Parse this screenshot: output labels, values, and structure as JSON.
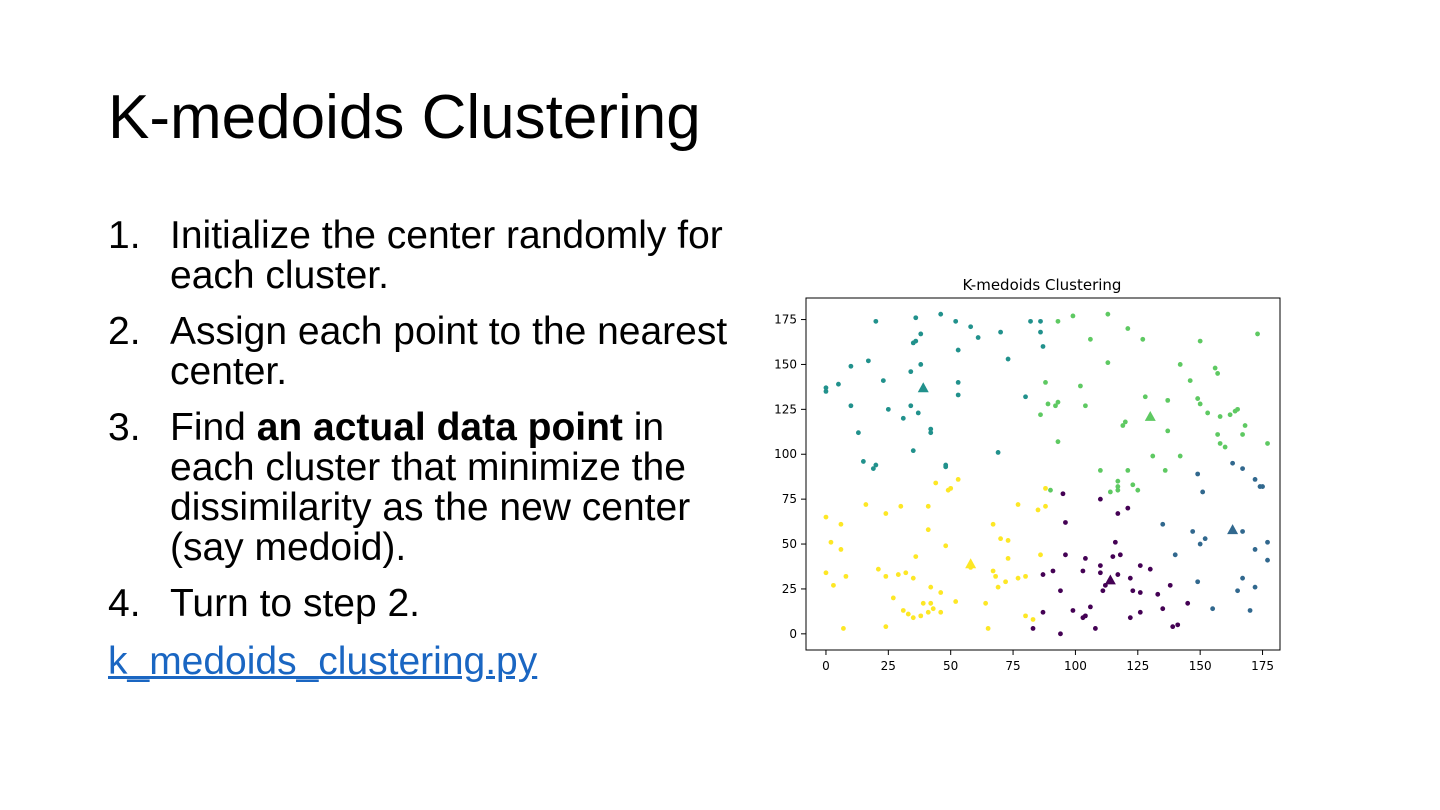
{
  "slide": {
    "title": "K-medoids Clustering",
    "steps": [
      {
        "number": "1.",
        "text": "Initialize the center randomly for each cluster."
      },
      {
        "number": "2.",
        "text": "Assign each point to the nearest center."
      },
      {
        "number": "3.",
        "before": "Find ",
        "bold": "an actual data point",
        "after": " in each cluster that minimize the dissimilarity as the new center (say medoid)."
      },
      {
        "number": "4.",
        "text": "Turn to step 2."
      }
    ],
    "link_text": "k_medoids_clustering.py",
    "link_color": "#1a66c2"
  },
  "chart_data": {
    "type": "scatter",
    "title": "K-medoids Clustering",
    "xlim": [
      -8,
      182
    ],
    "ylim": [
      -9,
      187
    ],
    "x_ticks": [
      0,
      25,
      50,
      75,
      100,
      125,
      150,
      175
    ],
    "y_ticks": [
      0,
      25,
      50,
      75,
      100,
      125,
      150,
      175
    ],
    "grid": false,
    "legend": "none",
    "series": [
      {
        "color": "#440154",
        "medoid": [
          114,
          30
        ],
        "points": [
          [
            95,
            78
          ],
          [
            110,
            75
          ],
          [
            117,
            67
          ],
          [
            121,
            70
          ],
          [
            96,
            62
          ],
          [
            116,
            51
          ],
          [
            115,
            43
          ],
          [
            118,
            44
          ],
          [
            104,
            42
          ],
          [
            110,
            38
          ],
          [
            126,
            38
          ],
          [
            130,
            36
          ],
          [
            122,
            31
          ],
          [
            117,
            33
          ],
          [
            110,
            34
          ],
          [
            112,
            27
          ],
          [
            103,
            35
          ],
          [
            96,
            44
          ],
          [
            91,
            35
          ],
          [
            87,
            33
          ],
          [
            94,
            24
          ],
          [
            111,
            24
          ],
          [
            123,
            24
          ],
          [
            126,
            23
          ],
          [
            133,
            22
          ],
          [
            138,
            27
          ],
          [
            135,
            14
          ],
          [
            126,
            12
          ],
          [
            145,
            17
          ],
          [
            106,
            15
          ],
          [
            99,
            13
          ],
          [
            104,
            10
          ],
          [
            108,
            3
          ],
          [
            103,
            9
          ],
          [
            87,
            12
          ],
          [
            83,
            3
          ],
          [
            94,
            0
          ],
          [
            139,
            4
          ],
          [
            141,
            5
          ],
          [
            122,
            9
          ]
        ]
      },
      {
        "color": "#31688e",
        "medoid": [
          163,
          58
        ],
        "points": [
          [
            163,
            95
          ],
          [
            167,
            92
          ],
          [
            172,
            86
          ],
          [
            174,
            82
          ],
          [
            175,
            82
          ],
          [
            149,
            89
          ],
          [
            151,
            79
          ],
          [
            135,
            61
          ],
          [
            147,
            57
          ],
          [
            150,
            50
          ],
          [
            152,
            53
          ],
          [
            140,
            44
          ],
          [
            149,
            29
          ],
          [
            155,
            14
          ],
          [
            167,
            57
          ],
          [
            172,
            47
          ],
          [
            177,
            51
          ],
          [
            177,
            41
          ],
          [
            167,
            31
          ],
          [
            172,
            26
          ],
          [
            170,
            13
          ],
          [
            165,
            24
          ]
        ]
      },
      {
        "color": "#21918c",
        "medoid": [
          39,
          137
        ],
        "points": [
          [
            20,
            174
          ],
          [
            36,
            176
          ],
          [
            46,
            178
          ],
          [
            52,
            174
          ],
          [
            58,
            171
          ],
          [
            38,
            167
          ],
          [
            36,
            163
          ],
          [
            35,
            162
          ],
          [
            53,
            158
          ],
          [
            61,
            165
          ],
          [
            70,
            168
          ],
          [
            73,
            153
          ],
          [
            82,
            174
          ],
          [
            86,
            174
          ],
          [
            86,
            168
          ],
          [
            87,
            160
          ],
          [
            38,
            150
          ],
          [
            23,
            141
          ],
          [
            34,
            146
          ],
          [
            10,
            149
          ],
          [
            17,
            152
          ],
          [
            5,
            139
          ],
          [
            0,
            137
          ],
          [
            0,
            135
          ],
          [
            10,
            127
          ],
          [
            25,
            125
          ],
          [
            31,
            120
          ],
          [
            37,
            123
          ],
          [
            34,
            127
          ],
          [
            53,
            140
          ],
          [
            53,
            133
          ],
          [
            42,
            114
          ],
          [
            42,
            112
          ],
          [
            13,
            112
          ],
          [
            15,
            96
          ],
          [
            19,
            92
          ],
          [
            20,
            94
          ],
          [
            35,
            102
          ],
          [
            48,
            94
          ],
          [
            48,
            93
          ],
          [
            69,
            101
          ],
          [
            80,
            132
          ]
        ]
      },
      {
        "color": "#5ec962",
        "medoid": [
          130,
          121
        ],
        "points": [
          [
            99,
            177
          ],
          [
            113,
            178
          ],
          [
            121,
            170
          ],
          [
            127,
            164
          ],
          [
            106,
            164
          ],
          [
            93,
            174
          ],
          [
            113,
            151
          ],
          [
            150,
            163
          ],
          [
            156,
            148
          ],
          [
            157,
            145
          ],
          [
            173,
            167
          ],
          [
            146,
            141
          ],
          [
            142,
            150
          ],
          [
            149,
            131
          ],
          [
            150,
            128
          ],
          [
            153,
            123
          ],
          [
            158,
            121
          ],
          [
            162,
            122
          ],
          [
            164,
            124
          ],
          [
            165,
            125
          ],
          [
            168,
            116
          ],
          [
            167,
            111
          ],
          [
            157,
            111
          ],
          [
            158,
            106
          ],
          [
            160,
            104
          ],
          [
            177,
            106
          ],
          [
            137,
            130
          ],
          [
            128,
            132
          ],
          [
            119,
            116
          ],
          [
            120,
            118
          ],
          [
            137,
            113
          ],
          [
            131,
            99
          ],
          [
            142,
            99
          ],
          [
            136,
            91
          ],
          [
            121,
            91
          ],
          [
            117,
            85
          ],
          [
            117,
            82
          ],
          [
            117,
            80
          ],
          [
            123,
            83
          ],
          [
            125,
            80
          ],
          [
            114,
            79
          ],
          [
            110,
            91
          ],
          [
            93,
            129
          ],
          [
            92,
            127
          ],
          [
            89,
            128
          ],
          [
            86,
            122
          ],
          [
            88,
            140
          ],
          [
            102,
            138
          ],
          [
            104,
            127
          ],
          [
            93,
            107
          ],
          [
            90,
            80
          ]
        ]
      },
      {
        "color": "#fde725",
        "medoid": [
          58,
          39
        ],
        "points": [
          [
            44,
            84
          ],
          [
            49,
            80
          ],
          [
            50,
            81
          ],
          [
            53,
            86
          ],
          [
            41,
            71
          ],
          [
            30,
            71
          ],
          [
            16,
            72
          ],
          [
            0,
            65
          ],
          [
            6,
            61
          ],
          [
            24,
            67
          ],
          [
            41,
            58
          ],
          [
            77,
            72
          ],
          [
            85,
            69
          ],
          [
            88,
            71
          ],
          [
            88,
            81
          ],
          [
            67,
            61
          ],
          [
            70,
            53
          ],
          [
            73,
            52
          ],
          [
            48,
            49
          ],
          [
            36,
            43
          ],
          [
            2,
            51
          ],
          [
            6,
            47
          ],
          [
            86,
            44
          ],
          [
            73,
            42
          ],
          [
            67,
            35
          ],
          [
            68,
            32
          ],
          [
            72,
            29
          ],
          [
            77,
            31
          ],
          [
            80,
            32
          ],
          [
            58,
            37
          ],
          [
            64,
            17
          ],
          [
            69,
            26
          ],
          [
            80,
            10
          ],
          [
            83,
            8
          ],
          [
            52,
            18
          ],
          [
            46,
            23
          ],
          [
            42,
            26
          ],
          [
            21,
            36
          ],
          [
            24,
            32
          ],
          [
            29,
            33
          ],
          [
            32,
            34
          ],
          [
            35,
            31
          ],
          [
            27,
            20
          ],
          [
            31,
            13
          ],
          [
            33,
            11
          ],
          [
            35,
            9
          ],
          [
            39,
            17
          ],
          [
            42,
            17
          ],
          [
            43,
            14
          ],
          [
            46,
            12
          ],
          [
            41,
            12
          ],
          [
            38,
            10
          ],
          [
            24,
            4
          ],
          [
            7,
            3
          ],
          [
            8,
            32
          ],
          [
            3,
            27
          ],
          [
            0,
            34
          ],
          [
            65,
            3
          ]
        ]
      }
    ]
  }
}
